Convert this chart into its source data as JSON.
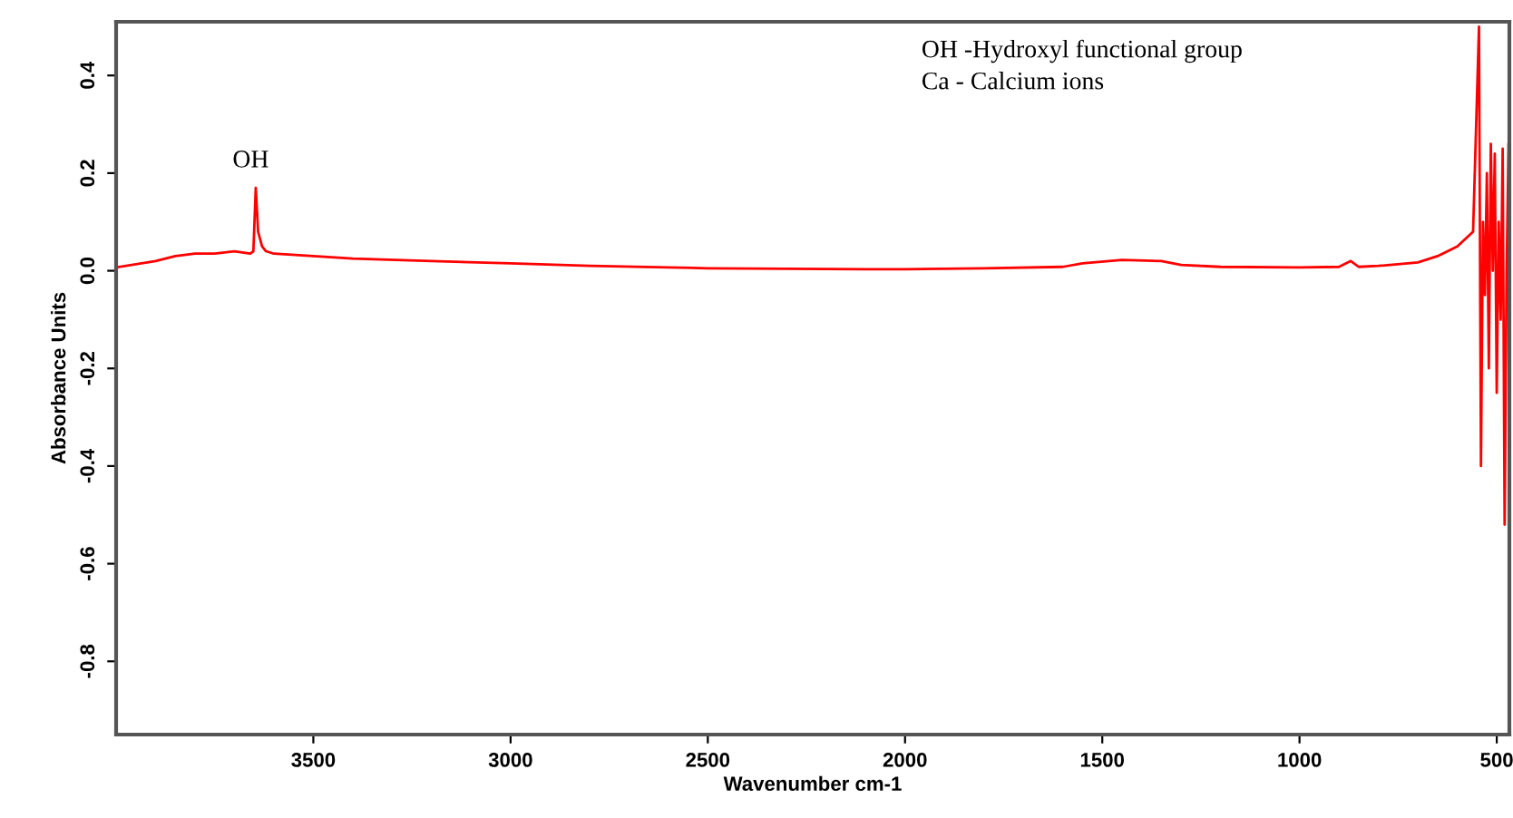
{
  "chart_data": {
    "type": "line",
    "xlabel": "Wavenumber cm-1",
    "ylabel": "Absorbance Units",
    "xlim": [
      4000,
      468
    ],
    "ylim": [
      -0.95,
      0.51
    ],
    "xticks": [
      3500,
      3000,
      2500,
      2000,
      1500,
      1000,
      500
    ],
    "yticks": [
      {
        "value": 0.4,
        "label": "0.4"
      },
      {
        "value": 0.2,
        "label": "0.2"
      },
      {
        "value": 0,
        "label": "0.0"
      },
      {
        "value": -0.2,
        "label": "-0.2"
      },
      {
        "value": -0.4,
        "label": "-0.4"
      },
      {
        "value": -0.6,
        "label": "-0.6"
      },
      {
        "value": -0.8,
        "label": "-0.8"
      }
    ],
    "grid": false,
    "legend": false,
    "annotations": [
      {
        "text": "OH",
        "x": 3646,
        "y": 0.17
      },
      "OH -Hydroxyl functional group",
      "Ca - Calcium ions"
    ],
    "series": [
      {
        "color": "#ff0000",
        "x": [
          4000,
          3900,
          3850,
          3800,
          3750,
          3700,
          3660,
          3652,
          3646,
          3640,
          3630,
          3620,
          3600,
          3500,
          3400,
          3200,
          3000,
          2800,
          2600,
          2500,
          2300,
          2100,
          2000,
          1800,
          1600,
          1550,
          1450,
          1350,
          1300,
          1200,
          1000,
          900,
          870,
          850,
          800,
          700,
          650,
          600,
          560,
          545,
          540,
          535,
          530,
          525,
          520,
          515,
          510,
          505,
          500,
          495,
          490,
          485,
          480,
          475,
          470
        ],
        "values": [
          0.007,
          0.02,
          0.03,
          0.035,
          0.035,
          0.04,
          0.035,
          0.04,
          0.17,
          0.08,
          0.05,
          0.04,
          0.035,
          0.03,
          0.025,
          0.02,
          0.015,
          0.01,
          0.007,
          0.005,
          0.004,
          0.003,
          0.003,
          0.005,
          0.008,
          0.015,
          0.022,
          0.02,
          0.012,
          0.008,
          0.007,
          0.008,
          0.02,
          0.008,
          0.01,
          0.017,
          0.03,
          0.05,
          0.08,
          0.5,
          -0.4,
          0.1,
          -0.05,
          0.2,
          -0.2,
          0.26,
          0.0,
          0.24,
          -0.25,
          0.1,
          -0.1,
          0.25,
          -0.52,
          0.0,
          0.26
        ]
      }
    ]
  }
}
